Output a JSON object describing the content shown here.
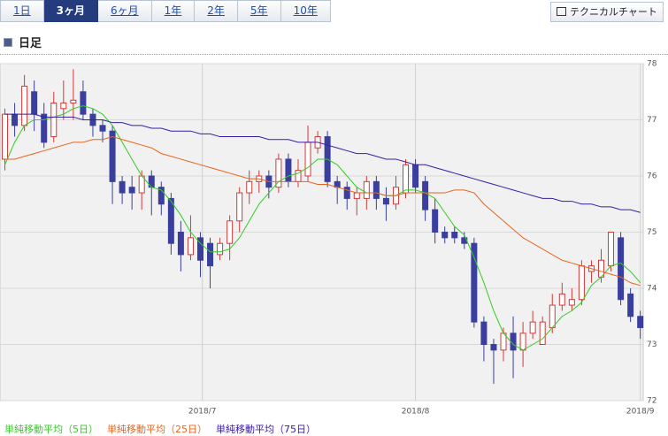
{
  "ui": {
    "tabs": [
      "1日",
      "3ヶ月",
      "6ヶ月",
      "1年",
      "2年",
      "5年",
      "10年"
    ],
    "selected": 1,
    "button": "テクニカルチャート",
    "section": "日足"
  },
  "chart_data": {
    "type": "candlestick",
    "categories": [
      null,
      null,
      null,
      null,
      null,
      null,
      null,
      null,
      null,
      null,
      null,
      null,
      null,
      null,
      null,
      null,
      null,
      null,
      null,
      null,
      null,
      null,
      null,
      null,
      null,
      null,
      null,
      null,
      null,
      null,
      null,
      null,
      null,
      null,
      null,
      null,
      null,
      null,
      null,
      null,
      null,
      null,
      null,
      null,
      null,
      null,
      null,
      null,
      null,
      null,
      null,
      null,
      null,
      null,
      null,
      null,
      null,
      null,
      null,
      null,
      null,
      null,
      null,
      null,
      null,
      null
    ],
    "open": [
      76.3,
      77.1,
      76.9,
      77.5,
      77.1,
      76.7,
      77.2,
      77.3,
      77.5,
      77.1,
      76.9,
      76.8,
      75.9,
      75.8,
      75.7,
      76.0,
      75.8,
      75.6,
      75.0,
      74.6,
      74.9,
      74.8,
      74.6,
      74.8,
      75.2,
      75.7,
      75.9,
      76.0,
      75.8,
      76.3,
      75.9,
      76.0,
      76.5,
      76.7,
      75.9,
      75.8,
      75.6,
      75.6,
      75.9,
      75.6,
      75.5,
      75.7,
      76.2,
      75.9,
      75.4,
      75.0,
      75.0,
      74.9,
      74.8,
      73.4,
      73.0,
      72.9,
      73.2,
      72.9,
      73.2,
      73.0,
      73.3,
      73.7,
      73.7,
      73.8,
      74.3,
      74.2,
      74.4,
      74.9,
      73.9,
      73.5
    ],
    "high": [
      77.2,
      77.3,
      77.8,
      77.7,
      77.3,
      77.5,
      77.7,
      77.9,
      77.7,
      77.2,
      77.0,
      76.9,
      76.0,
      76.0,
      76.1,
      76.1,
      75.9,
      75.7,
      75.2,
      75.3,
      75.0,
      74.9,
      74.9,
      75.3,
      75.8,
      76.1,
      76.1,
      76.1,
      76.4,
      76.4,
      76.3,
      76.9,
      76.8,
      76.8,
      76.0,
      75.9,
      75.8,
      76.0,
      76.0,
      75.8,
      76.0,
      76.3,
      76.3,
      76.0,
      75.6,
      75.1,
      75.1,
      75.0,
      74.9,
      73.5,
      73.1,
      73.3,
      73.5,
      73.4,
      73.6,
      73.5,
      73.9,
      74.1,
      74.0,
      74.5,
      74.5,
      74.7,
      75.0,
      75.0,
      74.0,
      73.6
    ],
    "low": [
      76.1,
      76.7,
      76.8,
      76.8,
      76.5,
      76.6,
      77.0,
      77.0,
      77.0,
      76.7,
      76.6,
      75.5,
      75.5,
      75.4,
      75.4,
      75.3,
      75.3,
      74.6,
      74.3,
      74.5,
      74.2,
      74.0,
      74.5,
      74.5,
      75.0,
      75.5,
      75.7,
      75.6,
      75.7,
      75.8,
      75.8,
      75.9,
      76.4,
      75.8,
      75.5,
      75.4,
      75.3,
      75.4,
      75.4,
      75.2,
      75.4,
      75.6,
      75.7,
      75.2,
      74.8,
      74.8,
      74.8,
      74.7,
      73.3,
      72.7,
      72.3,
      72.7,
      72.4,
      72.6,
      73.1,
      73.0,
      73.2,
      73.6,
      73.6,
      73.7,
      74.1,
      74.1,
      74.3,
      73.7,
      73.4,
      73.1
    ],
    "close": [
      77.1,
      76.9,
      77.6,
      77.1,
      76.6,
      77.3,
      77.3,
      77.35,
      77.1,
      76.9,
      76.8,
      75.9,
      75.7,
      75.7,
      76.0,
      75.8,
      75.5,
      74.8,
      74.6,
      74.9,
      74.5,
      74.4,
      74.8,
      75.2,
      75.7,
      75.9,
      76.0,
      75.8,
      76.3,
      75.9,
      76.1,
      76.6,
      76.7,
      75.9,
      75.8,
      75.6,
      75.7,
      75.9,
      75.6,
      75.5,
      75.8,
      76.2,
      75.8,
      75.4,
      75.0,
      74.9,
      74.9,
      74.8,
      73.4,
      73.0,
      72.9,
      73.2,
      72.9,
      73.2,
      73.4,
      73.4,
      73.7,
      73.9,
      73.8,
      74.4,
      74.4,
      74.5,
      75.0,
      73.8,
      73.5,
      73.3
    ],
    "up_color": "#d23a3a",
    "down_color": "#3a3f9e",
    "series": [
      {
        "name": "単純移動平均（5日）",
        "color": "#33cc22",
        "values": [
          76.2,
          76.6,
          76.9,
          77.0,
          77.0,
          77.05,
          77.1,
          77.2,
          77.25,
          77.2,
          77.1,
          76.9,
          76.6,
          76.3,
          76.0,
          75.8,
          75.75,
          75.55,
          75.3,
          75.0,
          74.8,
          74.65,
          74.65,
          74.7,
          74.9,
          75.2,
          75.5,
          75.7,
          75.9,
          76.0,
          76.05,
          76.15,
          76.3,
          76.3,
          76.2,
          76.0,
          75.8,
          75.7,
          75.7,
          75.65,
          75.65,
          75.75,
          75.75,
          75.7,
          75.6,
          75.35,
          75.1,
          74.95,
          74.55,
          74.1,
          73.6,
          73.2,
          73.0,
          72.9,
          73.0,
          73.1,
          73.3,
          73.5,
          73.6,
          73.75,
          74.05,
          74.2,
          74.4,
          74.45,
          74.3,
          74.1
        ]
      },
      {
        "name": "単純移動平均（25日）",
        "color": "#e8641e",
        "values": [
          76.3,
          76.3,
          76.35,
          76.4,
          76.45,
          76.5,
          76.55,
          76.6,
          76.6,
          76.65,
          76.65,
          76.7,
          76.65,
          76.6,
          76.55,
          76.5,
          76.4,
          76.35,
          76.3,
          76.25,
          76.2,
          76.15,
          76.1,
          76.05,
          76.0,
          75.95,
          75.95,
          75.9,
          75.9,
          75.9,
          75.9,
          75.9,
          75.85,
          75.85,
          75.8,
          75.75,
          75.7,
          75.7,
          75.7,
          75.65,
          75.65,
          75.7,
          75.7,
          75.7,
          75.7,
          75.7,
          75.75,
          75.75,
          75.7,
          75.5,
          75.35,
          75.2,
          75.05,
          74.9,
          74.8,
          74.7,
          74.6,
          74.5,
          74.45,
          74.4,
          74.35,
          74.3,
          74.25,
          74.2,
          74.1,
          74.05
        ]
      },
      {
        "name": "単純移動平均（75日）",
        "color": "#3a1aa8",
        "values": [
          77.1,
          77.1,
          77.1,
          77.1,
          77.05,
          77.05,
          77.05,
          77.05,
          77.0,
          77.0,
          77.0,
          76.95,
          76.95,
          76.9,
          76.9,
          76.85,
          76.85,
          76.8,
          76.8,
          76.8,
          76.75,
          76.75,
          76.7,
          76.7,
          76.7,
          76.7,
          76.7,
          76.65,
          76.65,
          76.65,
          76.6,
          76.6,
          76.6,
          76.55,
          76.5,
          76.45,
          76.4,
          76.4,
          76.35,
          76.3,
          76.3,
          76.25,
          76.2,
          76.2,
          76.15,
          76.1,
          76.05,
          76.0,
          75.95,
          75.9,
          75.85,
          75.8,
          75.75,
          75.7,
          75.65,
          75.6,
          75.6,
          75.55,
          75.55,
          75.5,
          75.5,
          75.45,
          75.45,
          75.4,
          75.4,
          75.35
        ]
      }
    ],
    "xlim": [
      -0.5,
      65.3
    ],
    "xticks": [
      {
        "value": 20.2,
        "label": "2018/7"
      },
      {
        "value": 42,
        "label": "2018/8"
      },
      {
        "value": 65,
        "label": "2018/9"
      }
    ],
    "ylim": [
      72,
      78
    ],
    "yticks": [
      72,
      73,
      74,
      75,
      76,
      77,
      78
    ],
    "grid": true
  }
}
